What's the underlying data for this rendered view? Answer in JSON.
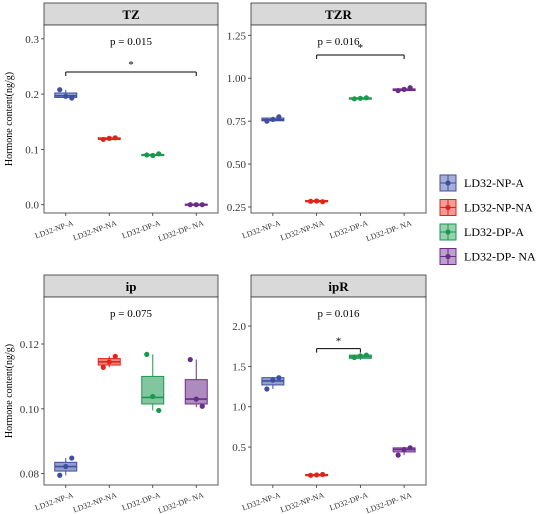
{
  "colors": {
    "LD32-NP-A": "#3C4FA0",
    "LD32-NP-NA": "#E2231A",
    "LD32-DP-A": "#1A9850",
    "LD32-DP- NA": "#6A2C8A"
  },
  "legend": {
    "items": [
      "LD32-NP-A",
      "LD32-NP-NA",
      "LD32-DP-A",
      "LD32-DP- NA"
    ]
  },
  "chart_data": [
    {
      "type": "box",
      "title": "TZ",
      "ylabel": "Hormone content(ng/g)",
      "pvalue": "p = 0.015",
      "ylim": [
        -0.015,
        0.325
      ],
      "yticks": [
        "0.0",
        "0.1",
        "0.2",
        "0.3"
      ],
      "ytick_values": [
        0,
        0.1,
        0.2,
        0.3
      ],
      "categories": [
        "LD32-NP-A",
        "LD32-NP-NA",
        "LD32-DP-A",
        "LD32-DP- NA"
      ],
      "boxes": [
        {
          "q1": 0.194,
          "median": 0.197,
          "q3": 0.202,
          "min": 0.193,
          "max": 0.208
        },
        {
          "q1": 0.118,
          "median": 0.119,
          "q3": 0.121,
          "min": 0.117,
          "max": 0.122
        },
        {
          "q1": 0.089,
          "median": 0.09,
          "q3": 0.091,
          "min": 0.088,
          "max": 0.092
        },
        {
          "q1": 0.0,
          "median": 0.0,
          "q3": 0.001,
          "min": 0.0,
          "max": 0.001
        }
      ],
      "points": [
        [
          0.208,
          0.196,
          0.193
        ],
        [
          0.118,
          0.12,
          0.121
        ],
        [
          0.09,
          0.089,
          0.092
        ],
        [
          0.0,
          0.0,
          0.0
        ]
      ],
      "significance": {
        "from": 0,
        "to": 3,
        "y": 0.24,
        "label": "*"
      }
    },
    {
      "type": "box",
      "title": "TZR",
      "ylabel": "",
      "pvalue": "p = 0.016",
      "ylim": [
        0.215,
        1.31
      ],
      "yticks": [
        "0.25",
        "0.50",
        "0.75",
        "1.00",
        "1.25"
      ],
      "ytick_values": [
        0.25,
        0.5,
        0.75,
        1.0,
        1.25
      ],
      "categories": [
        "LD32-NP-A",
        "LD32-NP-NA",
        "LD32-DP-A",
        "LD32-DP- NA"
      ],
      "boxes": [
        {
          "q1": 0.752,
          "median": 0.758,
          "q3": 0.768,
          "min": 0.748,
          "max": 0.775
        },
        {
          "q1": 0.28,
          "median": 0.284,
          "q3": 0.288,
          "min": 0.278,
          "max": 0.29
        },
        {
          "q1": 0.878,
          "median": 0.882,
          "q3": 0.886,
          "min": 0.876,
          "max": 0.888
        },
        {
          "q1": 0.928,
          "median": 0.932,
          "q3": 0.938,
          "min": 0.925,
          "max": 0.945
        }
      ],
      "points": [
        [
          0.75,
          0.76,
          0.775
        ],
        [
          0.283,
          0.285,
          0.281
        ],
        [
          0.88,
          0.883,
          0.886
        ],
        [
          0.928,
          0.935,
          0.945
        ]
      ],
      "significance": {
        "from": 1,
        "to": 3,
        "y": 1.135,
        "label": "*"
      }
    },
    {
      "type": "box",
      "title": "ip",
      "ylabel": "Hormone content(ng/g)",
      "pvalue": "p = 0.075",
      "ylim": [
        0.0765,
        0.1345
      ],
      "yticks": [
        "0.08",
        "0.10",
        "0.12"
      ],
      "ytick_values": [
        0.08,
        0.1,
        0.12
      ],
      "categories": [
        "LD32-NP-A",
        "LD32-NP-NA",
        "LD32-DP-A",
        "LD32-DP- NA"
      ],
      "boxes": [
        {
          "q1": 0.0808,
          "median": 0.0822,
          "q3": 0.0835,
          "min": 0.0795,
          "max": 0.0848
        },
        {
          "q1": 0.1135,
          "median": 0.1145,
          "q3": 0.1155,
          "min": 0.1128,
          "max": 0.1162
        },
        {
          "q1": 0.1015,
          "median": 0.1035,
          "q3": 0.11,
          "min": 0.0995,
          "max": 0.1168
        },
        {
          "q1": 0.1015,
          "median": 0.103,
          "q3": 0.109,
          "min": 0.1005,
          "max": 0.1152
        }
      ],
      "points": [
        [
          0.0795,
          0.0822,
          0.0848
        ],
        [
          0.1128,
          0.1145,
          0.1162
        ],
        [
          0.1168,
          0.1038,
          0.0995
        ],
        [
          0.1152,
          0.103,
          0.1008
        ]
      ],
      "significance": null
    },
    {
      "type": "box",
      "title": "ipR",
      "ylabel": "",
      "pvalue": "p = 0.016",
      "ylim": [
        0.03,
        2.36
      ],
      "yticks": [
        "0.5",
        "1.0",
        "1.5",
        "2.0"
      ],
      "ytick_values": [
        0.5,
        1.0,
        1.5,
        2.0
      ],
      "categories": [
        "LD32-NP-A",
        "LD32-NP-NA",
        "LD32-DP-A",
        "LD32-DP- NA"
      ],
      "boxes": [
        {
          "q1": 1.27,
          "median": 1.32,
          "q3": 1.36,
          "min": 1.22,
          "max": 1.37
        },
        {
          "q1": 0.15,
          "median": 0.155,
          "q3": 0.16,
          "min": 0.15,
          "max": 0.16
        },
        {
          "q1": 1.6,
          "median": 1.62,
          "q3": 1.64,
          "min": 1.58,
          "max": 1.65
        },
        {
          "q1": 0.44,
          "median": 0.47,
          "q3": 0.49,
          "min": 0.4,
          "max": 0.5
        }
      ],
      "points": [
        [
          1.22,
          1.33,
          1.36
        ],
        [
          0.15,
          0.155,
          0.16
        ],
        [
          1.61,
          1.63,
          1.64
        ],
        [
          0.4,
          0.47,
          0.49
        ]
      ],
      "significance": {
        "from": 1,
        "to": 2,
        "y": 1.72,
        "label": "*"
      }
    }
  ]
}
